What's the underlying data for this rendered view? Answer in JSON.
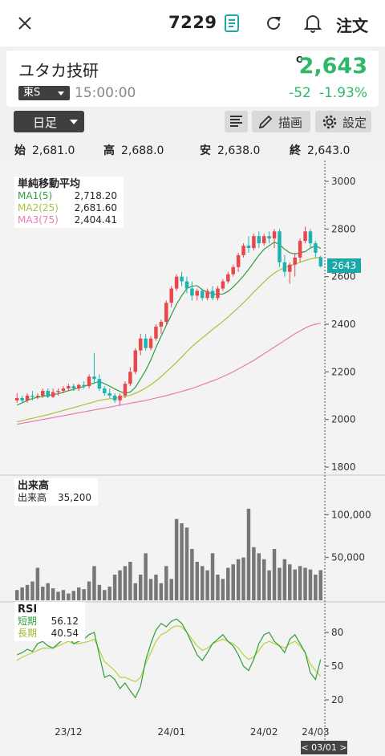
{
  "header": {
    "code": "7229",
    "order_label": "注文"
  },
  "stock": {
    "name": "ユタカ技研",
    "market": "東S",
    "time": "15:00:00",
    "price_flag": "C",
    "price": "2,643",
    "change": "-52",
    "change_pct": "-1.93%"
  },
  "toolbar": {
    "timeframe": "日足",
    "draw_label": "描画",
    "settings_label": "設定"
  },
  "ohlc": [
    {
      "label": "始",
      "value": "2,681.0"
    },
    {
      "label": "高",
      "value": "2,688.0"
    },
    {
      "label": "安",
      "value": "2,638.0"
    },
    {
      "label": "終",
      "value": "2,643.0"
    }
  ],
  "colors": {
    "up": "#e8484c",
    "down": "#1db3b3",
    "accent_green": "#2fb86a",
    "ma1": "#2e9e3e",
    "ma2": "#a8c23a",
    "ma3": "#e87ab8",
    "rsi_short": "#2e9e3e",
    "rsi_long": "#b7d33b",
    "badge": "#1aa8a8"
  },
  "legends": {
    "ma_title": "単純移動平均",
    "ma": [
      {
        "label": "MA1(5)",
        "value": "2,718.20"
      },
      {
        "label": "MA2(25)",
        "value": "2,681.60"
      },
      {
        "label": "MA3(75)",
        "value": "2,404.41"
      }
    ],
    "vol_title": "出来高",
    "vol_label": "出来高",
    "vol_value": "35,200",
    "rsi_title": "RSI",
    "rsi": [
      {
        "label": "短期",
        "value": "56.12"
      },
      {
        "label": "長期",
        "value": "40.54"
      }
    ]
  },
  "current_price_badge": "2643",
  "date_badge": "< 03/01 >",
  "chart_data": {
    "type": "candlestick",
    "price_axis": {
      "ticks": [
        3000,
        2800,
        2600,
        2400,
        2200,
        2000,
        1800
      ],
      "ylim": [
        1800,
        3000
      ]
    },
    "volume_axis": {
      "ticks": [
        "100,000",
        "50,000"
      ],
      "ylim": [
        0,
        120000
      ]
    },
    "rsi_axis": {
      "ticks": [
        80,
        50,
        20
      ],
      "ylim": [
        0,
        100
      ]
    },
    "x_tick_labels": [
      "23/12",
      "24/01",
      "24/02",
      "24/03"
    ],
    "candles": [
      [
        2080,
        2110,
        2070,
        2090
      ],
      [
        2090,
        2100,
        2070,
        2080
      ],
      [
        2080,
        2110,
        2070,
        2100
      ],
      [
        2100,
        2120,
        2080,
        2095
      ],
      [
        2095,
        2110,
        2085,
        2100
      ],
      [
        2100,
        2130,
        2090,
        2120
      ],
      [
        2120,
        2130,
        2090,
        2095
      ],
      [
        2095,
        2130,
        2090,
        2115
      ],
      [
        2115,
        2130,
        2100,
        2120
      ],
      [
        2120,
        2140,
        2110,
        2130
      ],
      [
        2130,
        2150,
        2120,
        2140
      ],
      [
        2140,
        2150,
        2120,
        2130
      ],
      [
        2130,
        2150,
        2120,
        2145
      ],
      [
        2145,
        2160,
        2130,
        2140
      ],
      [
        2140,
        2190,
        2130,
        2180
      ],
      [
        2180,
        2280,
        2150,
        2170
      ],
      [
        2170,
        2190,
        2120,
        2130
      ],
      [
        2130,
        2140,
        2100,
        2110
      ],
      [
        2110,
        2130,
        2090,
        2100
      ],
      [
        2100,
        2110,
        2070,
        2080
      ],
      [
        2080,
        2110,
        2060,
        2100
      ],
      [
        2100,
        2160,
        2090,
        2150
      ],
      [
        2150,
        2220,
        2140,
        2200
      ],
      [
        2200,
        2300,
        2190,
        2290
      ],
      [
        2290,
        2360,
        2270,
        2340
      ],
      [
        2340,
        2360,
        2290,
        2300
      ],
      [
        2300,
        2350,
        2290,
        2340
      ],
      [
        2340,
        2400,
        2330,
        2390
      ],
      [
        2390,
        2420,
        2360,
        2410
      ],
      [
        2410,
        2500,
        2400,
        2490
      ],
      [
        2490,
        2560,
        2470,
        2550
      ],
      [
        2550,
        2610,
        2540,
        2600
      ],
      [
        2600,
        2620,
        2560,
        2580
      ],
      [
        2580,
        2600,
        2530,
        2550
      ],
      [
        2550,
        2580,
        2500,
        2520
      ],
      [
        2520,
        2550,
        2500,
        2540
      ],
      [
        2540,
        2550,
        2500,
        2510
      ],
      [
        2510,
        2550,
        2500,
        2540
      ],
      [
        2540,
        2560,
        2500,
        2510
      ],
      [
        2510,
        2560,
        2500,
        2550
      ],
      [
        2550,
        2590,
        2540,
        2580
      ],
      [
        2580,
        2620,
        2570,
        2610
      ],
      [
        2610,
        2650,
        2600,
        2640
      ],
      [
        2640,
        2700,
        2620,
        2690
      ],
      [
        2690,
        2740,
        2680,
        2730
      ],
      [
        2730,
        2770,
        2700,
        2720
      ],
      [
        2720,
        2780,
        2710,
        2770
      ],
      [
        2770,
        2790,
        2720,
        2740
      ],
      [
        2740,
        2780,
        2730,
        2770
      ],
      [
        2770,
        2790,
        2740,
        2760
      ],
      [
        2760,
        2800,
        2720,
        2790
      ],
      [
        2790,
        2800,
        2640,
        2660
      ],
      [
        2660,
        2690,
        2600,
        2620
      ],
      [
        2620,
        2660,
        2570,
        2650
      ],
      [
        2650,
        2700,
        2600,
        2680
      ],
      [
        2680,
        2760,
        2660,
        2750
      ],
      [
        2750,
        2810,
        2740,
        2790
      ],
      [
        2790,
        2800,
        2720,
        2740
      ],
      [
        2740,
        2750,
        2680,
        2700
      ],
      [
        2681,
        2688,
        2638,
        2643
      ]
    ],
    "volume": [
      12000,
      15000,
      18000,
      22000,
      38000,
      16000,
      20000,
      14000,
      10000,
      12000,
      8000,
      11000,
      15000,
      13000,
      22000,
      40000,
      18000,
      12000,
      16000,
      30000,
      35000,
      40000,
      45000,
      20000,
      30000,
      55000,
      25000,
      30000,
      20000,
      40000,
      25000,
      95000,
      90000,
      85000,
      60000,
      45000,
      40000,
      35000,
      55000,
      30000,
      25000,
      38000,
      42000,
      48000,
      50000,
      107000,
      62000,
      55000,
      48000,
      35000,
      60000,
      38000,
      48000,
      42000,
      36000,
      40000,
      38000,
      36000,
      30000,
      35200
    ],
    "ma1": [
      2060,
      2070,
      2080,
      2088,
      2093,
      2097,
      2101,
      2104,
      2108,
      2114,
      2121,
      2126,
      2133,
      2138,
      2147,
      2153,
      2160,
      2150,
      2140,
      2128,
      2118,
      2110,
      2115,
      2135,
      2170,
      2206,
      2250,
      2302,
      2350,
      2395,
      2440,
      2484,
      2520,
      2550,
      2560,
      2562,
      2545,
      2535,
      2527,
      2526,
      2527,
      2538,
      2556,
      2579,
      2603,
      2630,
      2660,
      2690,
      2715,
      2730,
      2745,
      2735,
      2715,
      2700,
      2695,
      2700,
      2705,
      2720,
      2730,
      2718
    ],
    "ma2": [
      1990,
      1995,
      2000,
      2005,
      2010,
      2015,
      2020,
      2026,
      2032,
      2038,
      2044,
      2050,
      2056,
      2062,
      2068,
      2074,
      2080,
      2084,
      2087,
      2089,
      2092,
      2096,
      2102,
      2110,
      2120,
      2132,
      2146,
      2162,
      2180,
      2200,
      2220,
      2240,
      2262,
      2285,
      2306,
      2325,
      2342,
      2360,
      2378,
      2395,
      2412,
      2430,
      2450,
      2470,
      2490,
      2512,
      2535,
      2556,
      2578,
      2598,
      2615,
      2628,
      2638,
      2645,
      2652,
      2660,
      2668,
      2674,
      2678,
      2682
    ],
    "ma3": [
      1980,
      1984,
      1988,
      1992,
      1996,
      2000,
      2004,
      2008,
      2012,
      2016,
      2020,
      2024,
      2028,
      2032,
      2036,
      2040,
      2044,
      2048,
      2052,
      2056,
      2060,
      2064,
      2068,
      2072,
      2076,
      2080,
      2085,
      2090,
      2095,
      2100,
      2106,
      2112,
      2118,
      2124,
      2130,
      2138,
      2146,
      2154,
      2162,
      2170,
      2180,
      2190,
      2200,
      2212,
      2224,
      2236,
      2248,
      2262,
      2276,
      2290,
      2304,
      2318,
      2332,
      2346,
      2360,
      2372,
      2384,
      2394,
      2400,
      2404
    ],
    "rsi_short": [
      60,
      62,
      65,
      63,
      70,
      72,
      68,
      66,
      70,
      74,
      76,
      70,
      72,
      74,
      78,
      80,
      60,
      40,
      42,
      38,
      30,
      35,
      28,
      22,
      32,
      55,
      70,
      82,
      88,
      85,
      90,
      92,
      88,
      80,
      70,
      60,
      55,
      62,
      70,
      74,
      78,
      72,
      68,
      60,
      50,
      46,
      56,
      70,
      78,
      80,
      72,
      68,
      62,
      74,
      78,
      70,
      62,
      44,
      38,
      56
    ],
    "rsi_long": [
      55,
      58,
      60,
      62,
      64,
      66,
      66,
      66,
      68,
      70,
      72,
      70,
      70,
      71,
      72,
      74,
      64,
      54,
      50,
      46,
      40,
      40,
      38,
      36,
      40,
      52,
      62,
      72,
      78,
      80,
      84,
      86,
      85,
      80,
      74,
      68,
      64,
      66,
      70,
      72,
      74,
      72,
      70,
      66,
      60,
      56,
      58,
      64,
      70,
      72,
      70,
      68,
      66,
      70,
      72,
      68,
      62,
      52,
      46,
      41
    ]
  }
}
